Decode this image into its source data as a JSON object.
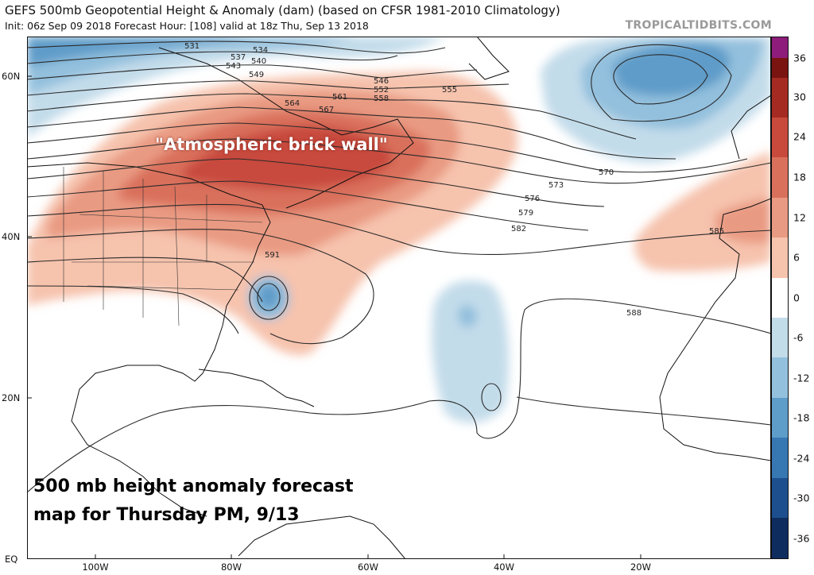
{
  "header": {
    "title": "GEFS 500mb Geopotential Height & Anomaly (dam) (based on CFSR 1981-2010 Climatology)",
    "subtitle": "Init: 06z Sep 09 2018   Forecast Hour: [108]   valid at 18z Thu, Sep 13 2018",
    "brand": "TROPICALTIDBITS.COM"
  },
  "axes": {
    "latitudes": [
      "60N",
      "40N",
      "20N",
      "EQ"
    ],
    "longitudes": [
      "100W",
      "80W",
      "60W",
      "40W",
      "20W"
    ]
  },
  "colorbar": {
    "ticks": [
      "36",
      "30",
      "24",
      "18",
      "12",
      "6",
      "0",
      "-6",
      "-12",
      "-18",
      "-24",
      "-30",
      "-36"
    ],
    "colors": {
      "purple": "#8e1c7a",
      "max": "#7a1410",
      "r30": "#a52a22",
      "r24": "#c84a3c",
      "r18": "#d9705c",
      "r12": "#e99a82",
      "r6": "#f6c3ad",
      "zero": "#ffffff",
      "b6": "#c3dcea",
      "b12": "#93c0dd",
      "b18": "#5e9cc9",
      "b24": "#3777b2",
      "b30": "#1d4f8e",
      "b36": "#0f2c5e"
    }
  },
  "contour_labels": [
    "531",
    "534",
    "537",
    "540",
    "543",
    "546",
    "549",
    "552",
    "555",
    "558",
    "561",
    "564",
    "567",
    "570",
    "573",
    "576",
    "579",
    "582",
    "585",
    "588",
    "591"
  ],
  "annotations": {
    "brick_wall": "\"Atmospheric brick wall\"",
    "caption_line1": "500 mb height anomaly forecast",
    "caption_line2": "map for Thursday PM, 9/13"
  }
}
